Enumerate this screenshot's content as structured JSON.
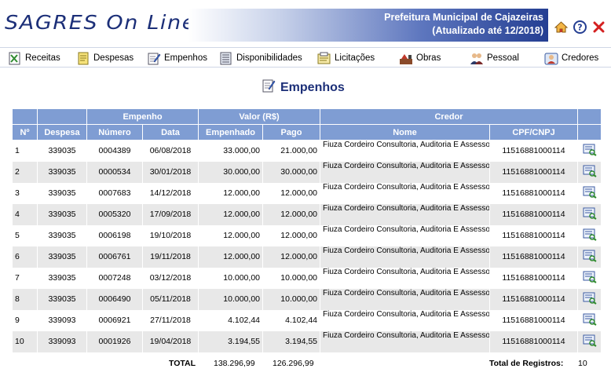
{
  "header": {
    "logo_text": "SAGRES On Line",
    "org_name": "Prefeitura Municipal de Cajazeiras",
    "updated_text": "(Atualizado até 12/2018)",
    "icons": [
      "home-icon",
      "help-icon",
      "close-icon"
    ]
  },
  "nav": {
    "items": [
      {
        "label": "Receitas",
        "icon": "receitas-icon"
      },
      {
        "label": "Despesas",
        "icon": "despesas-icon"
      },
      {
        "label": "Empenhos",
        "icon": "empenhos-icon"
      },
      {
        "label": "Disponibilidades",
        "icon": "disponibilidades-icon"
      },
      {
        "label": "Licitações",
        "icon": "licitacoes-icon"
      },
      {
        "label": "Obras",
        "icon": "obras-icon"
      },
      {
        "label": "Pessoal",
        "icon": "pessoal-icon"
      },
      {
        "label": "Credores",
        "icon": "credores-icon"
      }
    ]
  },
  "page": {
    "title": "Empenhos"
  },
  "table": {
    "group_headers": {
      "empenho": "Empenho",
      "valor": "Valor (R$)",
      "credor": "Credor"
    },
    "columns": {
      "num": "Nº",
      "despesa": "Despesa",
      "numero": "Número",
      "data": "Data",
      "empenhado": "Empenhado",
      "pago": "Pago",
      "nome": "Nome",
      "cpf": "CPF/CNPJ"
    },
    "rows": [
      {
        "n": "1",
        "despesa": "339035",
        "numero": "0004389",
        "data": "06/08/2018",
        "empenhado": "33.000,00",
        "pago": "21.000,00",
        "nome": "Fiuza Cordeiro Consultoria, Auditoria E Assessoria Ss Ltda",
        "cpf": "11516881000114"
      },
      {
        "n": "2",
        "despesa": "339035",
        "numero": "0000534",
        "data": "30/01/2018",
        "empenhado": "30.000,00",
        "pago": "30.000,00",
        "nome": "Fiuza Cordeiro Consultoria, Auditoria E Assessoria Ss Ltda",
        "cpf": "11516881000114"
      },
      {
        "n": "3",
        "despesa": "339035",
        "numero": "0007683",
        "data": "14/12/2018",
        "empenhado": "12.000,00",
        "pago": "12.000,00",
        "nome": "Fiuza Cordeiro Consultoria, Auditoria E Assessoria Ss Ltda",
        "cpf": "11516881000114"
      },
      {
        "n": "4",
        "despesa": "339035",
        "numero": "0005320",
        "data": "17/09/2018",
        "empenhado": "12.000,00",
        "pago": "12.000,00",
        "nome": "Fiuza Cordeiro Consultoria, Auditoria E Assessoria Ss Ltda",
        "cpf": "11516881000114"
      },
      {
        "n": "5",
        "despesa": "339035",
        "numero": "0006198",
        "data": "19/10/2018",
        "empenhado": "12.000,00",
        "pago": "12.000,00",
        "nome": "Fiuza Cordeiro Consultoria, Auditoria E Assessoria Ss Ltda",
        "cpf": "11516881000114"
      },
      {
        "n": "6",
        "despesa": "339035",
        "numero": "0006761",
        "data": "19/11/2018",
        "empenhado": "12.000,00",
        "pago": "12.000,00",
        "nome": "Fiuza Cordeiro Consultoria, Auditoria E Assessoria Ss Ltda",
        "cpf": "11516881000114"
      },
      {
        "n": "7",
        "despesa": "339035",
        "numero": "0007248",
        "data": "03/12/2018",
        "empenhado": "10.000,00",
        "pago": "10.000,00",
        "nome": "Fiuza Cordeiro Consultoria, Auditoria E Assessoria Ss Ltda",
        "cpf": "11516881000114"
      },
      {
        "n": "8",
        "despesa": "339035",
        "numero": "0006490",
        "data": "05/11/2018",
        "empenhado": "10.000,00",
        "pago": "10.000,00",
        "nome": "Fiuza Cordeiro Consultoria, Auditoria E Assessoria Ss Ltda",
        "cpf": "11516881000114"
      },
      {
        "n": "9",
        "despesa": "339093",
        "numero": "0006921",
        "data": "27/11/2018",
        "empenhado": "4.102,44",
        "pago": "4.102,44",
        "nome": "Fiuza Cordeiro Consultoria, Auditoria E Assessoria Ss Ltda",
        "cpf": "11516881000114"
      },
      {
        "n": "10",
        "despesa": "339093",
        "numero": "0001926",
        "data": "19/04/2018",
        "empenhado": "3.194,55",
        "pago": "3.194,55",
        "nome": "Fiuza Cordeiro Consultoria, Auditoria E Assessoria Ss Ltda",
        "cpf": "11516881000114"
      }
    ]
  },
  "footer": {
    "total_label": "TOTAL",
    "total_empenhado": "138.296,99",
    "total_pago": "126.296,99",
    "registros_label": "Total de Registros:",
    "registros_count": "10"
  },
  "colors": {
    "header_blue": "#1c2f78",
    "table_header": "#7f9dd3",
    "row_alt": "#e8e8e8"
  }
}
